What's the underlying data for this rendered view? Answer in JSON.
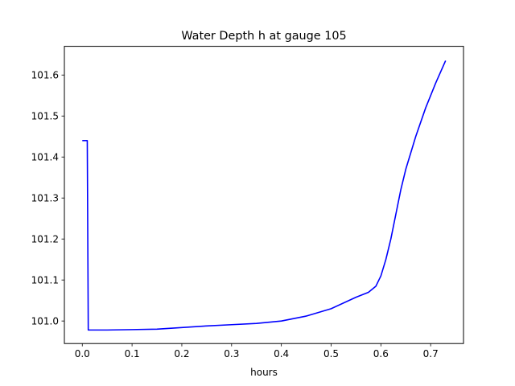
{
  "chart_data": {
    "type": "line",
    "title": "Water Depth h at gauge 105",
    "xlabel": "hours",
    "ylabel": "",
    "xlim": [
      -0.036,
      0.766
    ],
    "ylim": [
      100.945,
      101.67
    ],
    "xticks": [
      0.0,
      0.1,
      0.2,
      0.3,
      0.4,
      0.5,
      0.6,
      0.7
    ],
    "xtick_labels": [
      "0.0",
      "0.1",
      "0.2",
      "0.3",
      "0.4",
      "0.5",
      "0.6",
      "0.7"
    ],
    "yticks": [
      101.0,
      101.1,
      101.2,
      101.3,
      101.4,
      101.5,
      101.6
    ],
    "ytick_labels": [
      "101.0",
      "101.1",
      "101.2",
      "101.3",
      "101.4",
      "101.5",
      "101.6"
    ],
    "grid": false,
    "series": [
      {
        "color": "#0000ff",
        "x": [
          0.0,
          0.01,
          0.012,
          0.05,
          0.1,
          0.15,
          0.2,
          0.25,
          0.3,
          0.35,
          0.4,
          0.45,
          0.5,
          0.55,
          0.575,
          0.59,
          0.6,
          0.61,
          0.62,
          0.63,
          0.64,
          0.65,
          0.67,
          0.69,
          0.71,
          0.73
        ],
        "y": [
          101.44,
          101.44,
          100.978,
          100.978,
          100.979,
          100.98,
          100.984,
          100.988,
          100.991,
          100.994,
          101.0,
          101.012,
          101.03,
          101.058,
          101.07,
          101.085,
          101.11,
          101.15,
          101.2,
          101.26,
          101.32,
          101.37,
          101.45,
          101.52,
          101.58,
          101.635
        ]
      }
    ]
  }
}
